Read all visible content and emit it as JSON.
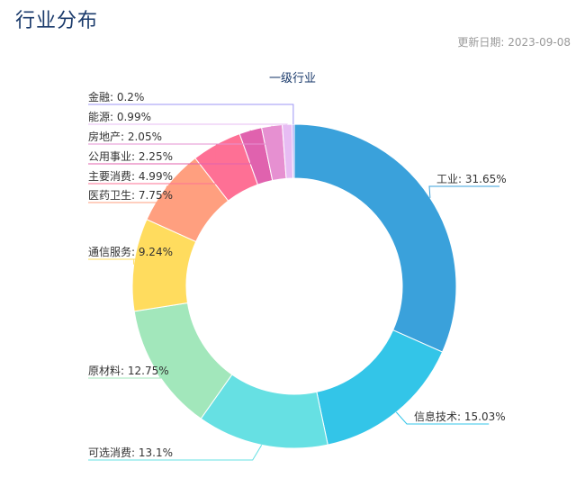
{
  "page": {
    "title": "行业分布",
    "update_label": "更新日期:",
    "update_date": "2023-09-08"
  },
  "chart_data": {
    "type": "pie",
    "title": "一级行业",
    "slices": [
      {
        "name": "工业",
        "value": 31.65,
        "label": "工业: 31.65%",
        "color": "#3aa1db"
      },
      {
        "name": "信息技术",
        "value": 15.03,
        "label": "信息技术: 15.03%",
        "color": "#33c5e8"
      },
      {
        "name": "可选消费",
        "value": 13.1,
        "label": "可选消费: 13.1%",
        "color": "#66e0e3"
      },
      {
        "name": "原材料",
        "value": 12.75,
        "label": "原材料: 12.75%",
        "color": "#a2e7bb"
      },
      {
        "name": "通信服务",
        "value": 9.24,
        "label": "通信服务: 9.24%",
        "color": "#ffdc5e"
      },
      {
        "name": "医药卫生",
        "value": 7.75,
        "label": "医药卫生: 7.75%",
        "color": "#ff9f7f"
      },
      {
        "name": "主要消费",
        "value": 4.99,
        "label": "主要消费: 4.99%",
        "color": "#fe7095"
      },
      {
        "name": "公用事业",
        "value": 2.25,
        "label": "公用事业: 2.25%",
        "color": "#e062ae"
      },
      {
        "name": "房地产",
        "value": 2.05,
        "label": "房地产: 2.05%",
        "color": "#e690d1"
      },
      {
        "name": "能源",
        "value": 0.99,
        "label": "能源: 0.99%",
        "color": "#e7bcf3"
      },
      {
        "name": "金融",
        "value": 0.2,
        "label": "金融: 0.2%",
        "color": "#9d96f5"
      }
    ]
  }
}
